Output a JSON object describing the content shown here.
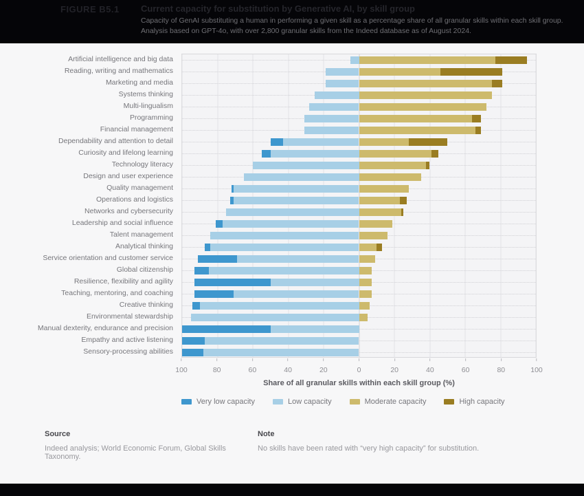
{
  "header": {
    "figure_label": "FIGURE B5.1",
    "title": "Current capacity for substitution by Generative AI, by skill group",
    "subtitle_line1": "Capacity of GenAI substituting a human in performing a given skill as a percentage share of all granular skills within each skill group.",
    "subtitle_line2": "Analysis based on GPT-4o, with over 2,800 granular skills from the Indeed database as of August 2024."
  },
  "chart_data": {
    "type": "bar",
    "variant": "diverging-stacked-horizontal",
    "title": "Current capacity for substitution by Generative AI, by skill group",
    "xlabel": "Share of all granular skills within each skill group (%)",
    "ylabel": "",
    "axis_tick_labels": [
      "100",
      "80",
      "60",
      "40",
      "20",
      "0",
      "20",
      "40",
      "60",
      "80",
      "100"
    ],
    "xlim": [
      -100,
      100
    ],
    "grid": true,
    "legend_position": "bottom",
    "categories": [
      "Artificial intelligence and big data",
      "Reading, writing and mathematics",
      "Marketing and media",
      "Systems thinking",
      "Multi-lingualism",
      "Programming",
      "Financial management",
      "Dependability and attention to detail",
      "Curiosity and lifelong learning",
      "Technology literacy",
      "Design and user experience",
      "Quality management",
      "Operations and logistics",
      "Networks and cybersecurity",
      "Leadership and social influence",
      "Talent management",
      "Analytical thinking",
      "Service orientation and customer service",
      "Global citizenship",
      "Resilience, flexibility and agility",
      "Teaching, mentoring, and coaching",
      "Creative thinking",
      "Environmental stewardship",
      "Manual dexterity, endurance and precision",
      "Empathy and active listening",
      "Sensory-processing abilities"
    ],
    "series": [
      {
        "name": "Very low capacity",
        "side": "left",
        "color": "#3E97CE",
        "values": [
          0,
          0,
          0,
          0,
          0,
          0,
          0,
          7,
          5,
          0,
          0,
          1,
          2,
          0,
          4,
          0,
          3,
          22,
          8,
          43,
          22,
          4,
          0,
          50,
          13,
          12
        ]
      },
      {
        "name": "Low capacity",
        "side": "left",
        "color": "#A7CFE6",
        "values": [
          5,
          19,
          19,
          25,
          28,
          31,
          31,
          43,
          50,
          60,
          65,
          71,
          71,
          75,
          77,
          84,
          84,
          69,
          85,
          50,
          71,
          90,
          95,
          50,
          87,
          88
        ]
      },
      {
        "name": "Moderate capacity",
        "side": "right",
        "color": "#CDBA6C",
        "values": [
          77,
          46,
          75,
          75,
          72,
          64,
          66,
          28,
          41,
          38,
          35,
          28,
          23,
          24,
          19,
          16,
          10,
          9,
          7,
          7,
          7,
          6,
          5,
          0,
          0,
          0
        ]
      },
      {
        "name": "High capacity",
        "side": "right",
        "color": "#9A7D22",
        "values": [
          18,
          35,
          6,
          0,
          0,
          5,
          3,
          22,
          4,
          2,
          0,
          0,
          4,
          1,
          0,
          0,
          3,
          0,
          0,
          0,
          0,
          0,
          0,
          0,
          0,
          0
        ]
      }
    ]
  },
  "footer": {
    "source_label": "Source",
    "source_text": "Indeed analysis; World Economic Forum, Global Skills Taxonomy.",
    "note_label": "Note",
    "note_text": "No skills have been rated with “very high capacity” for substitution."
  }
}
